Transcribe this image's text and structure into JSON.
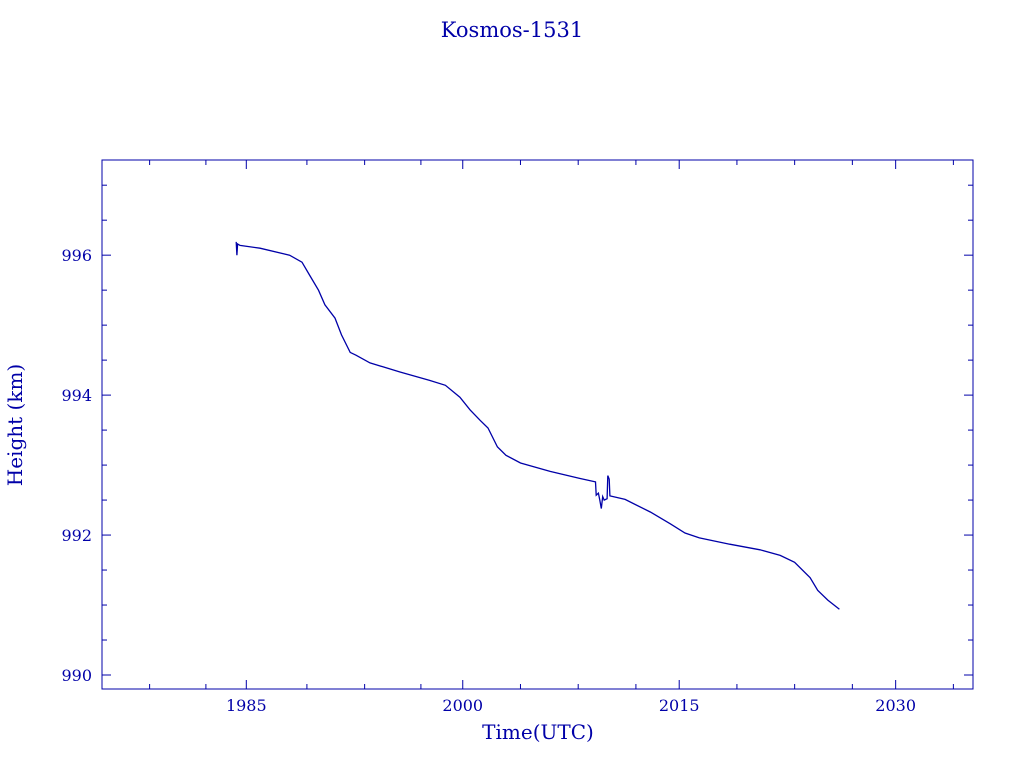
{
  "chart_data": {
    "type": "line",
    "title": "Kosmos-1531",
    "xlabel": "Time(UTC)",
    "ylabel": "Height (km)",
    "xlim": [
      1975.0,
      2035.36
    ],
    "ylim": [
      989.8,
      997.36
    ],
    "x_ticks": [
      1985,
      2000,
      2015,
      2030
    ],
    "x_tick_labels": [
      "1985",
      "2000",
      "2015",
      "2030"
    ],
    "x_minor_ticks": [
      1978.3,
      1982.2,
      1989.2,
      1993.2,
      1997.1,
      2004.0,
      2008.0,
      2012.0,
      2019.0,
      2023.0,
      2027.0,
      2034.0
    ],
    "y_ticks": [
      990,
      992,
      994,
      996
    ],
    "y_tick_labels": [
      "990",
      "992",
      "994",
      "996"
    ],
    "y_minor_step": 0.5,
    "grid": false,
    "color": "#0000a8",
    "series": [
      {
        "name": "Height",
        "x": [
          1984.3,
          1984.35,
          1984.4,
          1984.56,
          1985.95,
          1988.0,
          1988.86,
          1989.4,
          1990.0,
          1990.45,
          1991.15,
          1991.6,
          1992.2,
          1992.6,
          1993.57,
          1995.65,
          1997.7,
          1998.8,
          1999.8,
          2000.5,
          2001.2,
          2001.75,
          2002.4,
          2003.0,
          2004.0,
          2006.05,
          2008.1,
          2009.2,
          2009.25,
          2009.4,
          2009.5,
          2009.6,
          2009.7,
          2009.8,
          2010.0,
          2010.05,
          2010.15,
          2010.2,
          2011.25,
          2013.0,
          2014.4,
          2015.4,
          2016.4,
          2018.5,
          2020.6,
          2022.0,
          2023.0,
          2024.07,
          2024.6,
          2025.3,
          2026.1
        ],
        "y": [
          996.19,
          996.0,
          996.16,
          996.14,
          996.1,
          996.0,
          995.9,
          995.71,
          995.5,
          995.29,
          995.1,
          994.86,
          994.61,
          994.57,
          994.46,
          994.33,
          994.21,
          994.14,
          993.97,
          993.79,
          993.64,
          993.53,
          993.26,
          993.14,
          993.03,
          992.91,
          992.81,
          992.76,
          992.57,
          992.6,
          992.5,
          992.38,
          992.55,
          992.5,
          992.52,
          992.85,
          992.8,
          992.56,
          992.51,
          992.33,
          992.16,
          992.03,
          991.96,
          991.87,
          991.79,
          991.71,
          991.61,
          991.39,
          991.21,
          991.07,
          990.94
        ]
      }
    ]
  }
}
